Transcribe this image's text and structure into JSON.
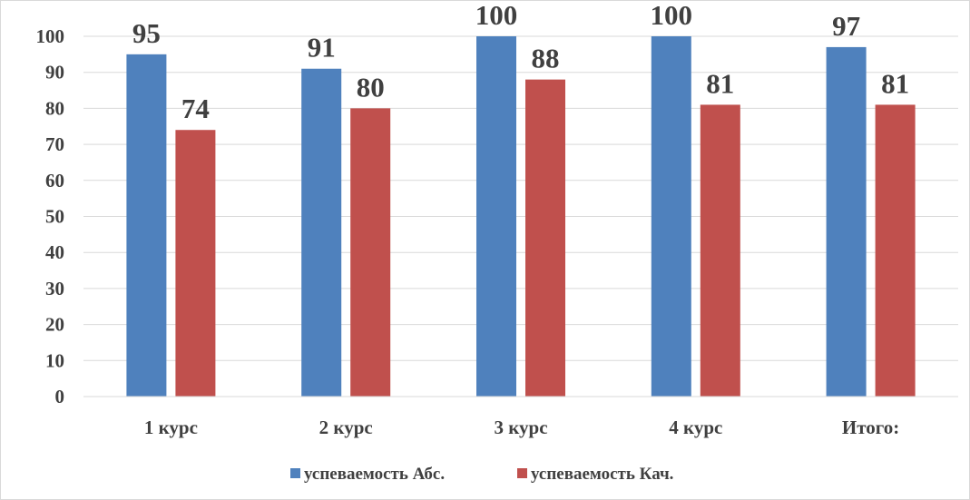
{
  "chart_data": {
    "type": "bar",
    "categories": [
      "1 курс",
      "2 курс",
      "3 курс",
      "4 курс",
      "Итого:"
    ],
    "series": [
      {
        "name": "успеваемость Абс.",
        "values": [
          95,
          91,
          100,
          100,
          97
        ],
        "color": "#4F81BD"
      },
      {
        "name": "успеваемость Кач.",
        "values": [
          74,
          80,
          88,
          81,
          81
        ],
        "color": "#C0504D"
      }
    ],
    "title": "",
    "xlabel": "",
    "ylabel": "",
    "ylim": [
      0,
      100
    ],
    "yticks": [
      0,
      10,
      20,
      30,
      40,
      50,
      60,
      70,
      80,
      90,
      100
    ],
    "grid": true,
    "legend_position": "bottom",
    "data_labels": true
  }
}
